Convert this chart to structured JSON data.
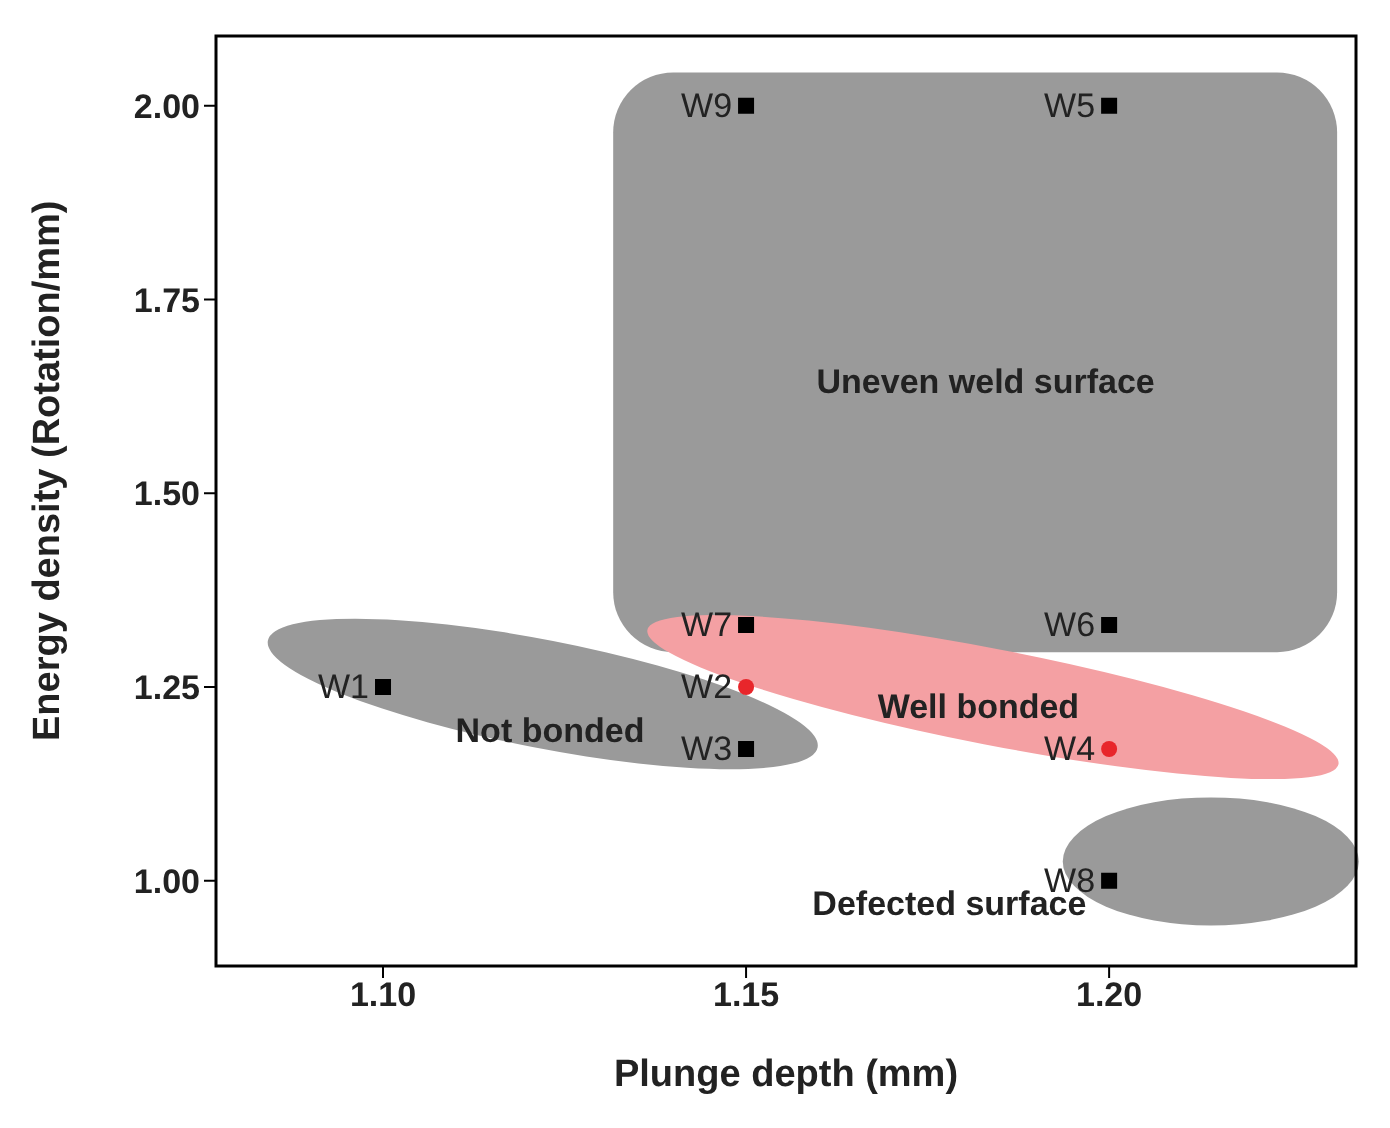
{
  "chart_data": {
    "type": "scatter",
    "xlabel": "Plunge depth (mm)",
    "ylabel": "Energy density (Rotation/mm)",
    "xlim": [
      1.077,
      1.234
    ],
    "xticks": [
      {
        "value": 1.1,
        "label": "1.10"
      },
      {
        "value": 1.15,
        "label": "1.15"
      },
      {
        "value": 1.2,
        "label": "1.20"
      }
    ],
    "ylim": [
      0.89,
      2.09
    ],
    "yticks": [
      {
        "value": 1,
        "label": "1.00"
      },
      {
        "value": 1.25,
        "label": "1.25"
      },
      {
        "value": 1.5,
        "label": "1.50"
      },
      {
        "value": 1.75,
        "label": "1.75"
      },
      {
        "value": 2,
        "label": "2.00"
      }
    ],
    "series": [
      {
        "color": "#000000",
        "marker": "square",
        "x": [
          1.1,
          1.15,
          1.2,
          1.2,
          1.15,
          1.2,
          1.15
        ],
        "values": [
          1.25,
          1.17,
          2,
          1.33,
          1.33,
          1,
          2
        ],
        "value_labels": [
          "W1",
          "W3",
          "W5",
          "W6",
          "W7",
          "W8",
          "W9"
        ]
      },
      {
        "color": "#e8262b",
        "marker": "circle",
        "x": [
          1.15,
          1.2
        ],
        "values": [
          1.25,
          1.17
        ],
        "value_labels": [
          "W2",
          "W4"
        ]
      }
    ],
    "annotations": [
      "Uneven weld surface",
      "Not bonded",
      "Well bonded",
      "Defected surface"
    ]
  }
}
